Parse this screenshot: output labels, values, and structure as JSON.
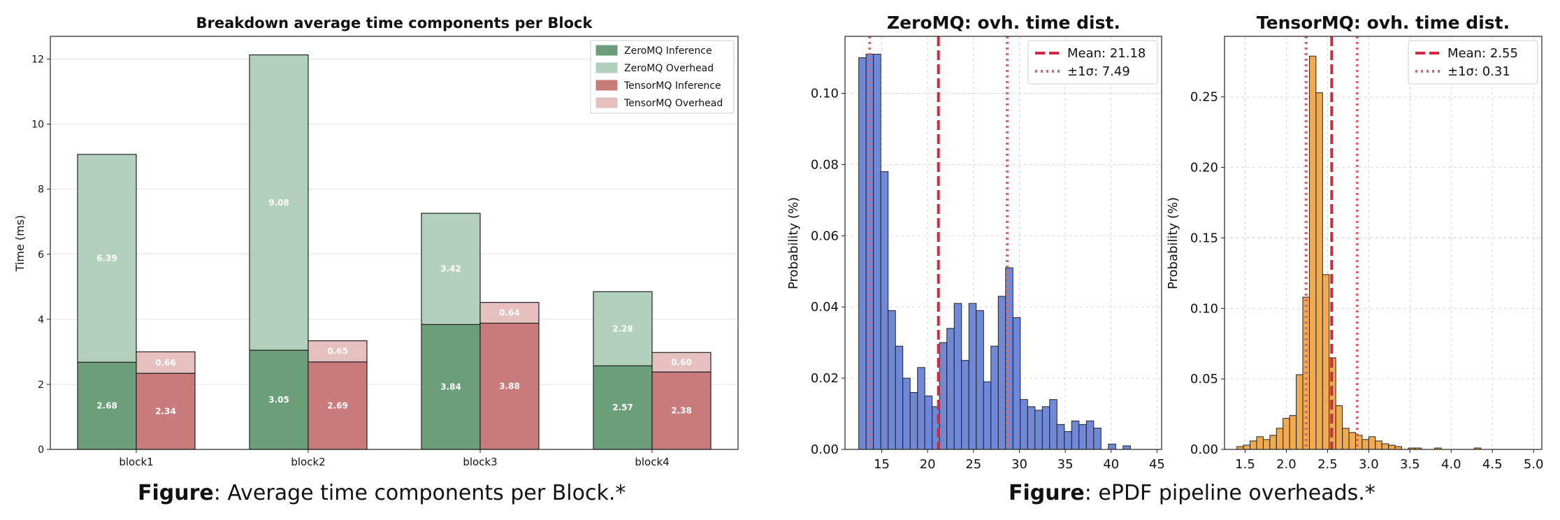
{
  "captions": {
    "left_bold": "Figure",
    "left_rest": ": Average time components per Block.*",
    "right_bold": "Figure",
    "right_rest": ": ePDF pipeline overheads.*"
  },
  "chart_data": [
    {
      "type": "bar",
      "stacked": true,
      "title": "Breakdown average time components per Block",
      "xlabel": "",
      "ylabel": "Time (ms)",
      "ylim": [
        0,
        12.7
      ],
      "yticks": [
        "0",
        "2",
        "4",
        "6",
        "8",
        "10",
        "12"
      ],
      "categories": [
        "block1",
        "block2",
        "block3",
        "block4"
      ],
      "legend_position": "top-right",
      "grid": true,
      "series": [
        {
          "name": "ZeroMQ Inference",
          "color": "#6a9f7a",
          "group": "ZeroMQ",
          "values": [
            2.68,
            3.05,
            3.84,
            2.57
          ],
          "labels": [
            "2.68",
            "3.05",
            "3.84",
            "2.57"
          ]
        },
        {
          "name": "ZeroMQ Overhead",
          "color": "#b3d0bd",
          "group": "ZeroMQ",
          "values": [
            6.39,
            9.08,
            3.42,
            2.28
          ],
          "labels": [
            "6.39",
            "9.08",
            "3.42",
            "2.28"
          ]
        },
        {
          "name": "TensorMQ Inference",
          "color": "#c97a7a",
          "group": "TensorMQ",
          "values": [
            2.34,
            2.69,
            3.88,
            2.38
          ],
          "labels": [
            "2.34",
            "2.69",
            "3.88",
            "2.38"
          ]
        },
        {
          "name": "TensorMQ Overhead",
          "color": "#e6bfbf",
          "group": "TensorMQ",
          "values": [
            0.66,
            0.65,
            0.64,
            0.6
          ],
          "labels": [
            "0.66",
            "0.65",
            "0.64",
            "0.60"
          ]
        }
      ]
    },
    {
      "type": "histogram",
      "title": "ZeroMQ: ovh. time dist.",
      "xlabel": "",
      "ylabel": "Probability (%)",
      "xlim": [
        11,
        45.5
      ],
      "ylim": [
        0,
        0.116
      ],
      "xticks": [
        "15",
        "20",
        "25",
        "30",
        "35",
        "40",
        "45"
      ],
      "yticks": [
        "0.00",
        "0.02",
        "0.04",
        "0.06",
        "0.08",
        "0.10"
      ],
      "color": "#7088d8",
      "bin_start": 12.5,
      "bin_width": 0.8,
      "values": [
        0.11,
        0.111,
        0.111,
        0.078,
        0.039,
        0.029,
        0.02,
        0.016,
        0.023,
        0.015,
        0.012,
        0.03,
        0.034,
        0.041,
        0.025,
        0.041,
        0.039,
        0.019,
        0.029,
        0.043,
        0.051,
        0.037,
        0.014,
        0.012,
        0.011,
        0.012,
        0.014,
        0.007,
        0.005,
        0.008,
        0.007,
        0.008,
        0.006,
        0.0,
        0.0015,
        0.0,
        0.001
      ],
      "mean": 21.18,
      "sigma": 7.49,
      "legend_position": "top-right",
      "legend": [
        "Mean: 21.18",
        "±1σ: 7.49"
      ],
      "grid": true
    },
    {
      "type": "histogram",
      "title": "TensorMQ: ovh. time dist.",
      "xlabel": "",
      "ylabel": "Probability (%)",
      "xlim": [
        1.25,
        5.1
      ],
      "ylim": [
        0,
        0.293
      ],
      "xticks": [
        "1.5",
        "2.0",
        "2.5",
        "3.0",
        "3.5",
        "4.0",
        "4.5",
        "5.0"
      ],
      "yticks": [
        "0.00",
        "0.05",
        "0.10",
        "0.15",
        "0.20",
        "0.25"
      ],
      "color": "#f0aa50",
      "bin_start": 1.4,
      "bin_width": 0.08,
      "values": [
        0.002,
        0.003,
        0.006,
        0.009,
        0.007,
        0.01,
        0.015,
        0.022,
        0.024,
        0.053,
        0.108,
        0.279,
        0.253,
        0.124,
        0.065,
        0.031,
        0.015,
        0.012,
        0.01,
        0.007,
        0.009,
        0.006,
        0.004,
        0.003,
        0.002,
        0.0,
        0.001,
        0.001,
        0.0,
        0.0,
        0.001,
        0.0,
        0.0,
        0.0,
        0.0,
        0.0,
        0.001,
        0.0
      ],
      "mean": 2.55,
      "sigma": 0.31,
      "legend_position": "top-right",
      "legend": [
        "Mean: 2.55",
        "±1σ: 0.31"
      ],
      "grid": true
    }
  ]
}
